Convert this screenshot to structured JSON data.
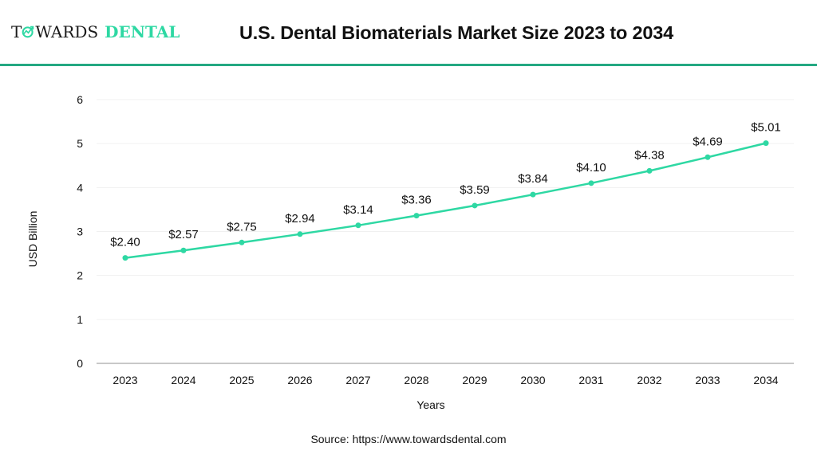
{
  "header": {
    "logo": {
      "part1": "T",
      "part2": "WARDS",
      "part3": "DENTAL",
      "icon": "trend-arrow-o-icon"
    },
    "title": "U.S. Dental Biomaterials Market Size 2023 to 2034"
  },
  "colors": {
    "line": "#2ed8a3",
    "divider": "#24a882",
    "grid": "#f0f0f0",
    "axis": "#c8c8c8",
    "text": "#111111"
  },
  "chart_data": {
    "type": "line",
    "title": "U.S. Dental Biomaterials Market Size 2023 to 2034",
    "xlabel": "Years",
    "ylabel": "USD Billion",
    "categories": [
      "2023",
      "2024",
      "2025",
      "2026",
      "2027",
      "2028",
      "2029",
      "2030",
      "2031",
      "2032",
      "2033",
      "2034"
    ],
    "series": [
      {
        "name": "U.S. Dental Biomaterials Market Size",
        "values": [
          2.4,
          2.57,
          2.75,
          2.94,
          3.14,
          3.36,
          3.59,
          3.84,
          4.1,
          4.38,
          4.69,
          5.01
        ],
        "labels": [
          "$2.40",
          "$2.57",
          "$2.75",
          "$2.94",
          "$3.14",
          "$3.36",
          "$3.59",
          "$3.84",
          "$4.10",
          "$4.38",
          "$4.69",
          "$5.01"
        ]
      }
    ],
    "ylim": [
      0,
      6
    ],
    "yticks": [
      "0",
      "1",
      "2",
      "3",
      "4",
      "5",
      "6"
    ],
    "grid": true,
    "legend": "none"
  },
  "footer": {
    "source": "Source: https://www.towardsdental.com"
  }
}
